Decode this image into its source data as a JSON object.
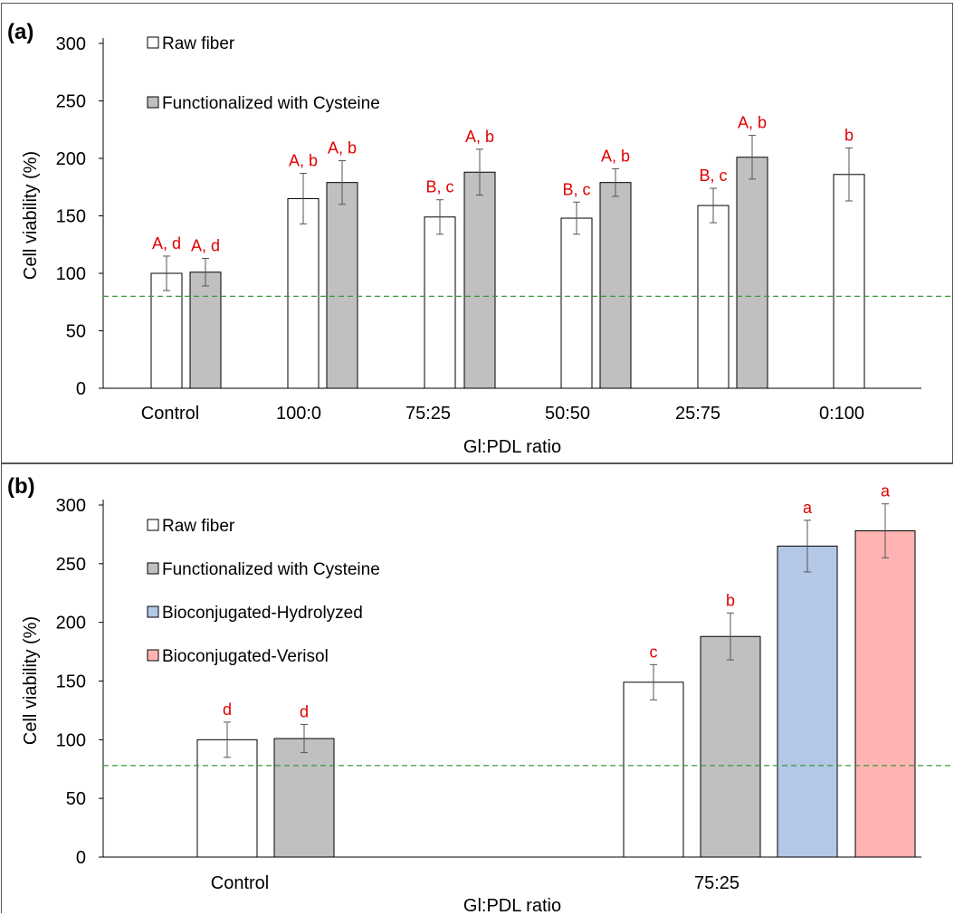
{
  "chart_data": [
    {
      "type": "bar",
      "panel_label": "(a)",
      "xlabel": "Gl:PDL ratio",
      "ylabel": "Cell viability (%)",
      "ylim": [
        0,
        300
      ],
      "yticks": [
        0,
        50,
        100,
        150,
        200,
        250,
        300
      ],
      "grid": false,
      "legend_position": "top-left",
      "reference_line": 80,
      "categories": [
        "Control",
        "100:0",
        "75:25",
        "50:50",
        "25:75",
        "0:100"
      ],
      "series": [
        {
          "name": "Raw fiber",
          "color": "#ffffff",
          "values": [
            100,
            165,
            149,
            148,
            159,
            186
          ],
          "errors": [
            15,
            22,
            15,
            14,
            15,
            23
          ],
          "labels": [
            "A, d",
            "A, b",
            "B, c",
            "B, c",
            "B, c",
            "b"
          ]
        },
        {
          "name": "Functionalized with Cysteine",
          "color": "#c0c0c0",
          "values": [
            101,
            179,
            188,
            179,
            201,
            null
          ],
          "errors": [
            12,
            19,
            20,
            12,
            19,
            null
          ],
          "labels": [
            "A, d",
            "A, b",
            "A, b",
            "A, b",
            "A, b",
            ""
          ]
        }
      ]
    },
    {
      "type": "bar",
      "panel_label": "(b)",
      "xlabel": "Gl:PDL ratio",
      "ylabel": "Cell viability (%)",
      "ylim": [
        0,
        300
      ],
      "yticks": [
        0,
        50,
        100,
        150,
        200,
        250,
        300
      ],
      "grid": false,
      "legend_position": "top-left",
      "reference_line": 78,
      "categories": [
        "Control",
        "75:25"
      ],
      "series": [
        {
          "name": "Raw fiber",
          "color": "#ffffff",
          "values": [
            100,
            149
          ],
          "errors": [
            15,
            15
          ],
          "labels": [
            "d",
            "c"
          ]
        },
        {
          "name": "Functionalized with Cysteine",
          "color": "#c0c0c0",
          "values": [
            101,
            188
          ],
          "errors": [
            12,
            20
          ],
          "labels": [
            "d",
            "b"
          ]
        },
        {
          "name": "Bioconjugated-Hydrolyzed",
          "color": "#b4c7e7",
          "values": [
            null,
            265
          ],
          "errors": [
            null,
            22
          ],
          "labels": [
            "",
            "a"
          ]
        },
        {
          "name": "Bioconjugated-Verisol",
          "color": "#ffb3b3",
          "values": [
            null,
            278
          ],
          "errors": [
            null,
            23
          ],
          "labels": [
            "",
            "a"
          ]
        }
      ]
    }
  ]
}
